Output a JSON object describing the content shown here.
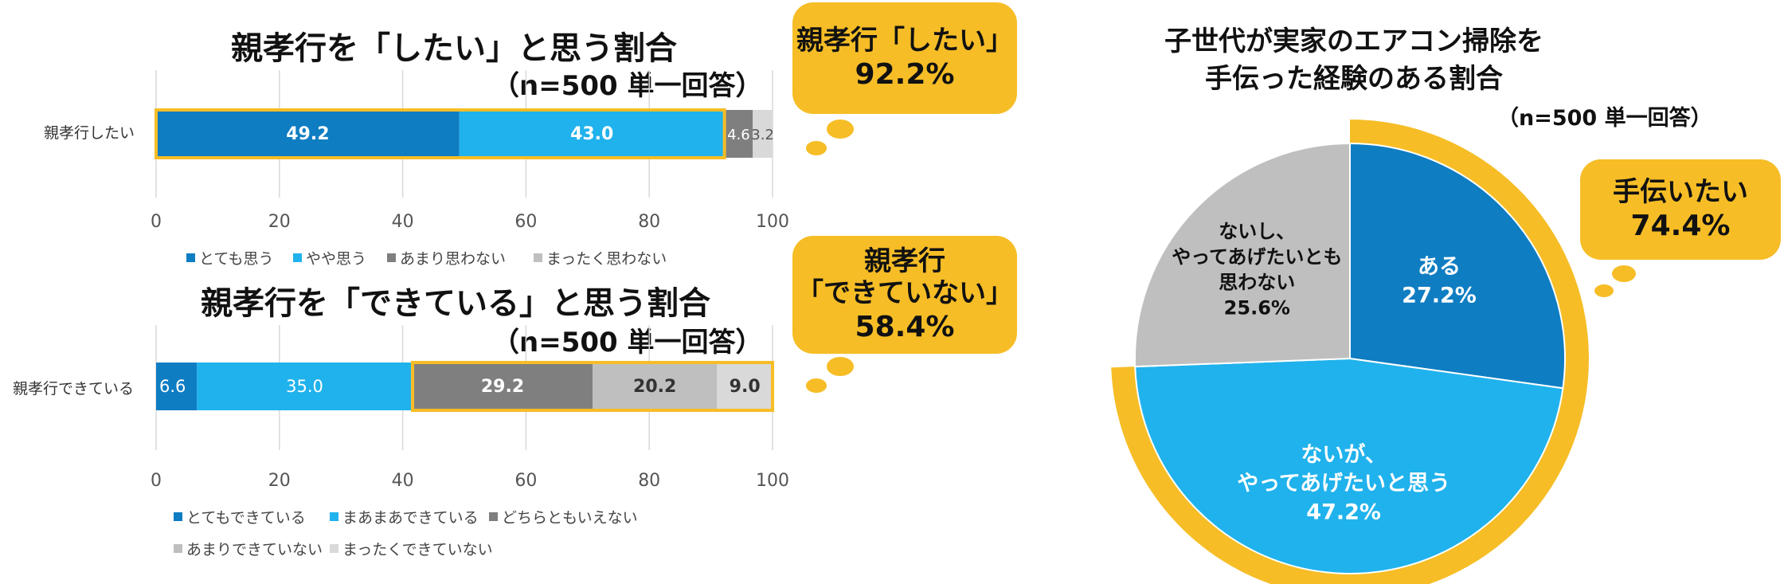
{
  "colors": {
    "dark_blue": "#0f7dc2",
    "light_blue": "#20b2ec",
    "dark_gray": "#7f7f7f",
    "mid_gray": "#bfbfbf",
    "light_gray": "#d9d9d9",
    "highlight": "#f6bd26"
  },
  "chart_data": [
    {
      "type": "bar",
      "orientation": "horizontal-stacked",
      "title": "親孝行を「したい」と思う割合",
      "subtitle": "（n=500 単一回答）",
      "categories": [
        "親孝行したい"
      ],
      "series": [
        {
          "name": "とても思う",
          "values": [
            49.2
          ]
        },
        {
          "name": "やや思う",
          "values": [
            43.0
          ]
        },
        {
          "name": "あまり思わない",
          "values": [
            4.6
          ]
        },
        {
          "name": "まったく思わない",
          "values": [
            3.2
          ]
        }
      ],
      "data_labels": [
        "49.2",
        "43.0",
        "4.6",
        "3.2"
      ],
      "xlim": [
        0,
        100
      ],
      "x_ticks": [
        "0",
        "20",
        "40",
        "60",
        "80",
        "100"
      ],
      "grid": true,
      "legend": "bottom",
      "callout": {
        "line1": "親孝行「したい」",
        "line2": "92.2%"
      }
    },
    {
      "type": "bar",
      "orientation": "horizontal-stacked",
      "title": "親孝行を「できている」と思う割合",
      "subtitle": "（n=500 単一回答）",
      "categories": [
        "親孝行できている"
      ],
      "series": [
        {
          "name": "とてもできている",
          "values": [
            6.6
          ]
        },
        {
          "name": "まあまあできている",
          "values": [
            35.0
          ]
        },
        {
          "name": "どちらともいえない",
          "values": [
            29.2
          ]
        },
        {
          "name": "あまりできていない",
          "values": [
            20.2
          ]
        },
        {
          "name": "まったくできていない",
          "values": [
            9.0
          ]
        }
      ],
      "data_labels": [
        "6.6",
        "35.0",
        "29.2",
        "20.2",
        "9.0"
      ],
      "xlim": [
        0,
        100
      ],
      "x_ticks": [
        "0",
        "20",
        "40",
        "60",
        "80",
        "100"
      ],
      "grid": true,
      "legend": "bottom",
      "callout": {
        "line1": "親孝行",
        "line2": "「できていない」",
        "line3": "58.4%"
      }
    },
    {
      "type": "pie",
      "title_line1": "子世代が実家のエアコン掃除を",
      "title_line2": "手伝った経験のある割合",
      "subtitle": "（n=500 単一回答）",
      "slices": [
        {
          "label_lines": [
            "ある"
          ],
          "value": 27.2,
          "value_label": "27.2%"
        },
        {
          "label_lines": [
            "ないが、",
            "やってあげたいと思う"
          ],
          "value": 47.2,
          "value_label": "47.2%"
        },
        {
          "label_lines": [
            "ないし、",
            "やってあげたいとも",
            "思わない"
          ],
          "value": 25.6,
          "value_label": "25.6%"
        }
      ],
      "callout": {
        "line1": "手伝いたい",
        "line2": "74.4%"
      }
    }
  ]
}
